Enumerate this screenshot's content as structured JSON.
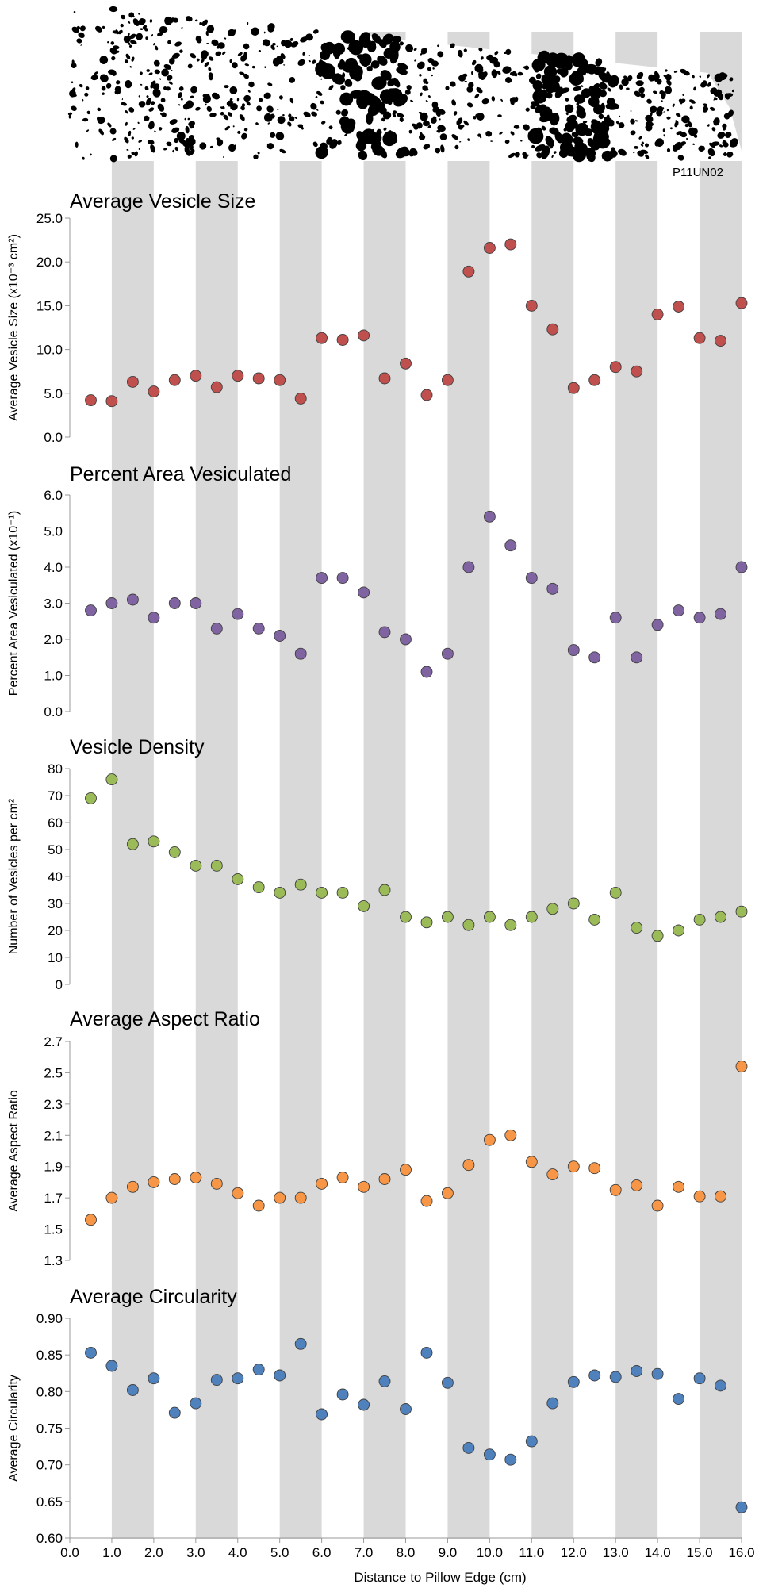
{
  "sample_label": "P11UN02",
  "xlabel": "Distance to Pillow Edge (cm)",
  "x_ticks": [
    "0.0",
    "1.0",
    "2.0",
    "3.0",
    "4.0",
    "5.0",
    "6.0",
    "7.0",
    "8.0",
    "9.0",
    "10.0",
    "11.0",
    "12.0",
    "13.0",
    "14.0",
    "15.0",
    "16.0"
  ],
  "colors": {
    "band": "#d9d9d9",
    "axis": "#999999"
  },
  "chart_data": [
    {
      "type": "scatter",
      "title": "Average Vesicle Size",
      "ylabel": "Average Vesicle Size (x10⁻³ cm²)",
      "ylim": [
        0,
        25
      ],
      "yticks": [
        "0.0",
        "5.0",
        "10.0",
        "15.0",
        "20.0",
        "25.0"
      ],
      "color": "#c0504d",
      "x": [
        0.5,
        1.0,
        1.5,
        2.0,
        2.5,
        3.0,
        3.5,
        4.0,
        4.5,
        5.0,
        5.5,
        6.0,
        6.5,
        7.0,
        7.5,
        8.0,
        8.5,
        9.0,
        9.5,
        10.0,
        10.5,
        11.0,
        11.5,
        12.0,
        12.5,
        13.0,
        13.5,
        14.0,
        14.5,
        15.0,
        15.5,
        16.0
      ],
      "y": [
        4.2,
        4.1,
        6.3,
        5.2,
        6.5,
        7.0,
        5.7,
        7.0,
        6.7,
        6.5,
        4.4,
        11.3,
        11.1,
        11.6,
        6.7,
        8.4,
        4.8,
        6.5,
        18.9,
        21.6,
        22.0,
        15.0,
        12.3,
        5.6,
        6.5,
        8.0,
        7.5,
        14.0,
        14.9,
        11.3,
        11.0,
        15.3
      ]
    },
    {
      "type": "scatter",
      "title": "Percent Area Vesiculated",
      "ylabel": "Percent Area Vesiculated (x10⁻¹)",
      "ylim": [
        0,
        6
      ],
      "yticks": [
        "0.0",
        "1.0",
        "2.0",
        "3.0",
        "4.0",
        "5.0",
        "6.0"
      ],
      "color": "#8064a2",
      "x": [
        0.5,
        1.0,
        1.5,
        2.0,
        2.5,
        3.0,
        3.5,
        4.0,
        4.5,
        5.0,
        5.5,
        6.0,
        6.5,
        7.0,
        7.5,
        8.0,
        8.5,
        9.0,
        9.5,
        10.0,
        10.5,
        11.0,
        11.5,
        12.0,
        12.5,
        13.0,
        13.5,
        14.0,
        14.5,
        15.0,
        15.5,
        16.0
      ],
      "y": [
        2.8,
        3.0,
        3.1,
        2.6,
        3.0,
        3.0,
        2.3,
        2.7,
        2.3,
        2.1,
        1.6,
        3.7,
        3.7,
        3.3,
        2.2,
        2.0,
        1.1,
        1.6,
        4.0,
        5.4,
        4.6,
        3.7,
        3.4,
        1.7,
        1.5,
        2.6,
        1.5,
        2.4,
        2.8,
        2.6,
        2.7,
        4.0
      ]
    },
    {
      "type": "scatter",
      "title": "Vesicle Density",
      "ylabel": "Number of Vesicles per cm²",
      "ylim": [
        0,
        80
      ],
      "yticks": [
        "0",
        "10",
        "20",
        "30",
        "40",
        "50",
        "60",
        "70",
        "80"
      ],
      "color": "#9bbb59",
      "x": [
        0.5,
        1.0,
        1.5,
        2.0,
        2.5,
        3.0,
        3.5,
        4.0,
        4.5,
        5.0,
        5.5,
        6.0,
        6.5,
        7.0,
        7.5,
        8.0,
        8.5,
        9.0,
        9.5,
        10.0,
        10.5,
        11.0,
        11.5,
        12.0,
        12.5,
        13.0,
        13.5,
        14.0,
        14.5,
        15.0,
        15.5,
        16.0
      ],
      "y": [
        69,
        76,
        52,
        53,
        49,
        44,
        44,
        39,
        36,
        34,
        37,
        34,
        34,
        29,
        35,
        25,
        23,
        25,
        22,
        25,
        22,
        25,
        28,
        30,
        24,
        34,
        21,
        18,
        20,
        24,
        25,
        27
      ]
    },
    {
      "type": "scatter",
      "title": "Average Aspect Ratio",
      "ylabel": "Average Aspect Ratio",
      "ylim": [
        1.3,
        2.7
      ],
      "yticks": [
        "1.3",
        "1.5",
        "1.7",
        "1.9",
        "2.1",
        "2.3",
        "2.5",
        "2.7"
      ],
      "color": "#f79646",
      "x": [
        0.5,
        1.0,
        1.5,
        2.0,
        2.5,
        3.0,
        3.5,
        4.0,
        4.5,
        5.0,
        5.5,
        6.0,
        6.5,
        7.0,
        7.5,
        8.0,
        8.5,
        9.0,
        9.5,
        10.0,
        10.5,
        11.0,
        11.5,
        12.0,
        12.5,
        13.0,
        13.5,
        14.0,
        14.5,
        15.0,
        15.5,
        16.0
      ],
      "y": [
        1.56,
        1.7,
        1.77,
        1.8,
        1.82,
        1.83,
        1.79,
        1.73,
        1.65,
        1.7,
        1.7,
        1.79,
        1.83,
        1.77,
        1.82,
        1.88,
        1.68,
        1.73,
        1.91,
        2.07,
        2.1,
        1.93,
        1.85,
        1.9,
        1.89,
        1.75,
        1.78,
        1.65,
        1.77,
        1.71,
        1.71,
        2.54
      ]
    },
    {
      "type": "scatter",
      "title": "Average Circularity",
      "ylabel": "Average Circularity",
      "ylim": [
        0.6,
        0.9
      ],
      "yticks": [
        "0.60",
        "0.65",
        "0.70",
        "0.75",
        "0.80",
        "0.85",
        "0.90"
      ],
      "color": "#4f81bd",
      "x": [
        0.5,
        1.0,
        1.5,
        2.0,
        2.5,
        3.0,
        3.5,
        4.0,
        4.5,
        5.0,
        5.5,
        6.0,
        6.5,
        7.0,
        7.5,
        8.0,
        8.5,
        9.0,
        9.5,
        10.0,
        10.5,
        11.0,
        11.5,
        12.0,
        12.5,
        13.0,
        13.5,
        14.0,
        14.5,
        15.0,
        15.5,
        16.0
      ],
      "y": [
        0.853,
        0.835,
        0.802,
        0.818,
        0.771,
        0.784,
        0.816,
        0.818,
        0.83,
        0.822,
        0.865,
        0.769,
        0.796,
        0.782,
        0.814,
        0.776,
        0.853,
        0.812,
        0.723,
        0.714,
        0.707,
        0.732,
        0.784,
        0.813,
        0.822,
        0.82,
        0.828,
        0.824,
        0.79,
        0.818,
        0.808,
        0.642
      ]
    }
  ]
}
